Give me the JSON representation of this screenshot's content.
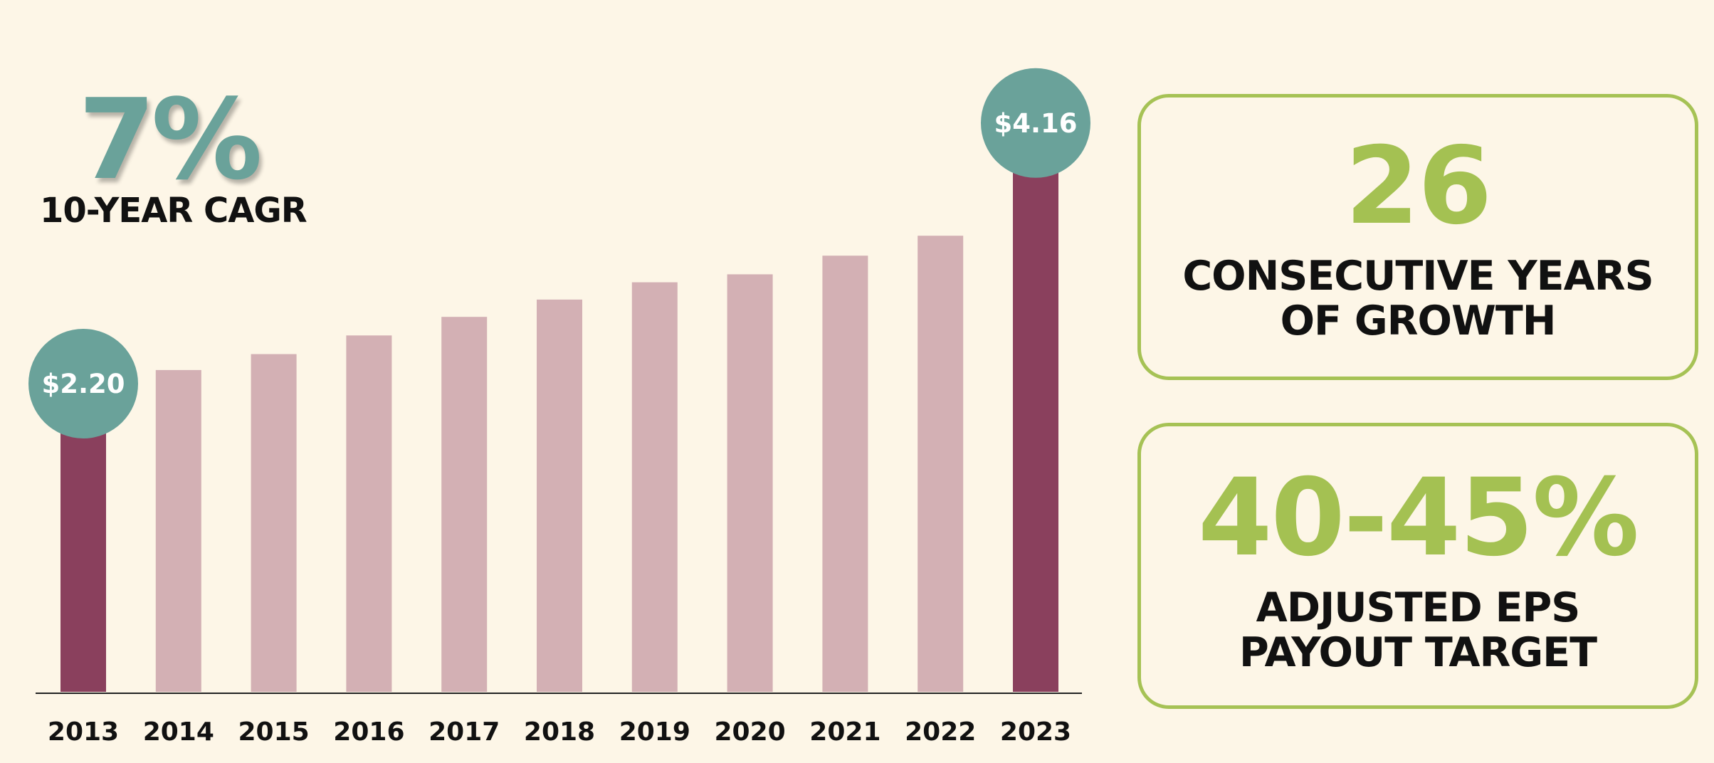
{
  "colors": {
    "background": "#fdf6e7",
    "bar_highlight": "#8a405d",
    "bar_default": "#d3b0b4",
    "bubble": "#6aa29a",
    "stat_green": "#a4c152",
    "box_border": "#a6c255",
    "text": "#111111"
  },
  "headline": {
    "value": "7%",
    "label": "10-YEAR CAGR"
  },
  "stats": [
    {
      "value": "26",
      "label_lines": [
        "CONSECUTIVE YEARS",
        "OF GROWTH"
      ]
    },
    {
      "value": "40-45%",
      "label_lines": [
        "ADJUSTED EPS",
        "PAYOUT TARGET"
      ]
    }
  ],
  "chart_data": {
    "type": "bar",
    "title": "",
    "xlabel": "",
    "ylabel": "",
    "categories": [
      "2013",
      "2014",
      "2015",
      "2016",
      "2017",
      "2018",
      "2019",
      "2020",
      "2021",
      "2022",
      "2023"
    ],
    "values": [
      2.2,
      2.42,
      2.54,
      2.68,
      2.82,
      2.95,
      3.08,
      3.14,
      3.28,
      3.43,
      4.16
    ],
    "ylim": [
      0,
      4.4
    ],
    "highlighted": [
      {
        "category": "2013",
        "label": "$2.20"
      },
      {
        "category": "2023",
        "label": "$4.16"
      }
    ],
    "grid": false,
    "legend": "none"
  }
}
